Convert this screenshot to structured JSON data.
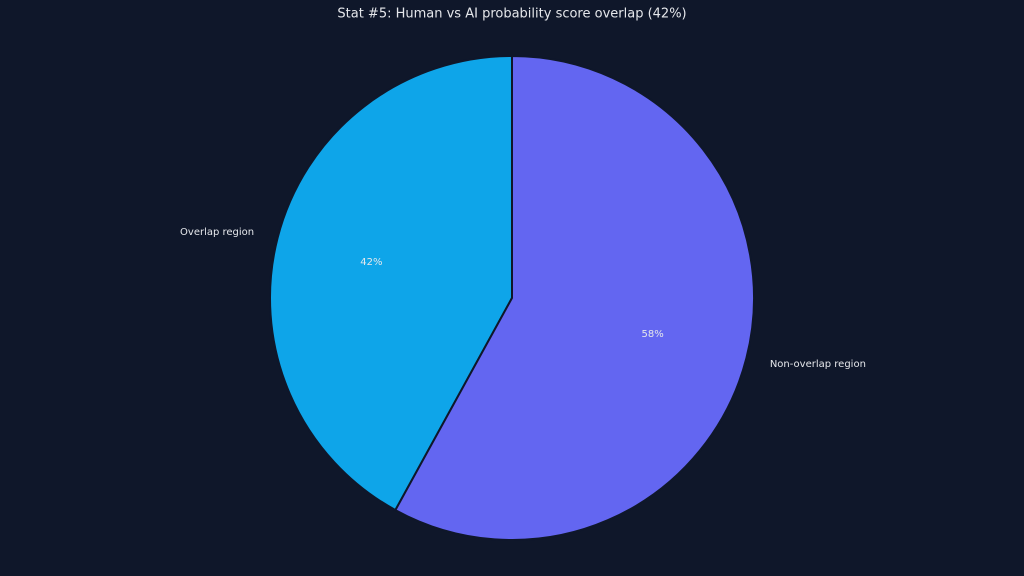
{
  "chart_data": {
    "type": "pie",
    "title": "Stat #5: Human vs AI probability score overlap (42%)",
    "categories": [
      "Overlap region",
      "Non-overlap region"
    ],
    "values": [
      42,
      58
    ],
    "value_labels": [
      "42%",
      "58%"
    ],
    "colors": [
      "#0ea5e9",
      "#6366f1"
    ],
    "start_angle": 90,
    "direction": "counterclockwise"
  }
}
